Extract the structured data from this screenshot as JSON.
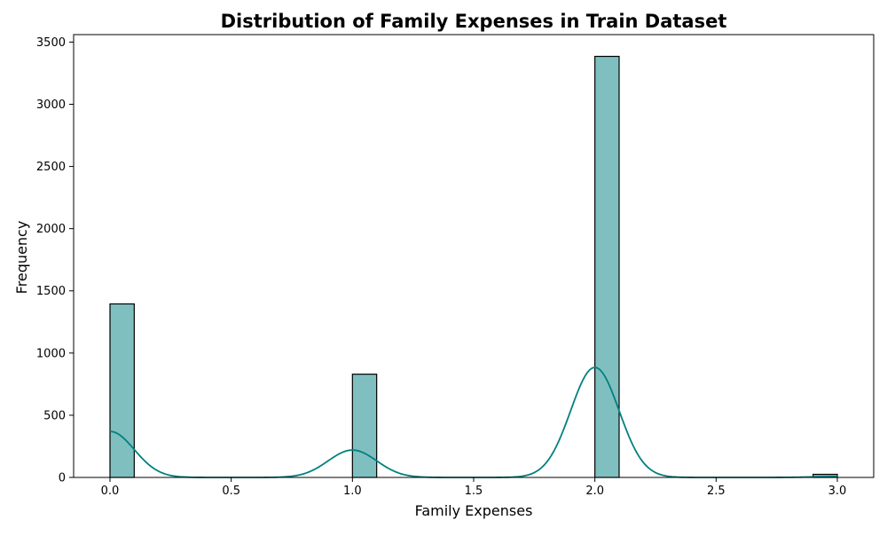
{
  "chart_data": {
    "type": "bar",
    "title": "Distribution of Family Expenses in Train Dataset",
    "xlabel": "Family Expenses",
    "ylabel": "Frequency",
    "xlim": [
      -0.15,
      3.15
    ],
    "ylim": [
      0,
      3560
    ],
    "x_ticks": [
      "0.0",
      "0.5",
      "1.0",
      "1.5",
      "2.0",
      "2.5",
      "3.0"
    ],
    "x_tick_values": [
      0,
      0.5,
      1,
      1.5,
      2,
      2.5,
      3
    ],
    "y_ticks": [
      "0",
      "500",
      "1000",
      "1500",
      "2000",
      "2500",
      "3000",
      "3500"
    ],
    "y_tick_values": [
      0,
      500,
      1000,
      1500,
      2000,
      2500,
      3000,
      3500
    ],
    "bin_width": 0.1,
    "bars": [
      {
        "x_start": 0.0,
        "x_end": 0.1,
        "value": 1395
      },
      {
        "x_start": 1.0,
        "x_end": 1.1,
        "value": 830
      },
      {
        "x_start": 2.0,
        "x_end": 2.1,
        "value": 3385
      },
      {
        "x_start": 2.9,
        "x_end": 3.0,
        "value": 25
      }
    ],
    "kde": {
      "peaks": [
        {
          "x": 0.0,
          "height": 370,
          "sigma": 0.1
        },
        {
          "x": 1.0,
          "height": 220,
          "sigma": 0.1
        },
        {
          "x": 2.0,
          "height": 885,
          "sigma": 0.1
        },
        {
          "x": 3.0,
          "height": 7,
          "sigma": 0.1
        }
      ]
    },
    "colors": {
      "bar_fill": "#80bfbf",
      "bar_edge": "#000000",
      "kde_line": "#008080"
    },
    "grid": false,
    "legend": "none"
  }
}
